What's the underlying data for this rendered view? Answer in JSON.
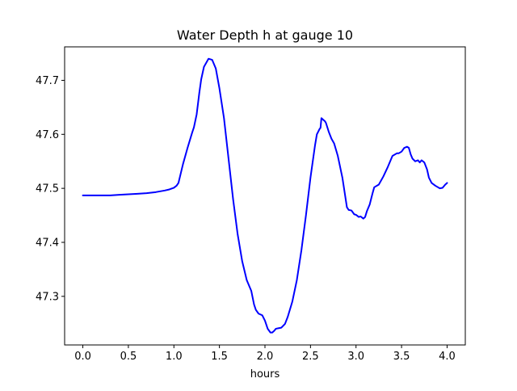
{
  "chart_data": {
    "type": "line",
    "title": "Water Depth h at gauge 10",
    "xlabel": "hours",
    "ylabel": "",
    "xlim": [
      -0.2,
      4.2
    ],
    "ylim": [
      47.21,
      47.762
    ],
    "xticks": [
      0.0,
      0.5,
      1.0,
      1.5,
      2.0,
      2.5,
      3.0,
      3.5,
      4.0
    ],
    "xtick_labels": [
      "0.0",
      "0.5",
      "1.0",
      "1.5",
      "2.0",
      "2.5",
      "3.0",
      "3.5",
      "4.0"
    ],
    "yticks": [
      47.3,
      47.4,
      47.5,
      47.6,
      47.7
    ],
    "ytick_labels": [
      "47.3",
      "47.4",
      "47.5",
      "47.6",
      "47.7"
    ],
    "grid": false,
    "series": [
      {
        "color": "#0000ff",
        "x": [
          0.0,
          0.1,
          0.2,
          0.3,
          0.4,
          0.5,
          0.6,
          0.7,
          0.8,
          0.9,
          0.95,
          1.0,
          1.03,
          1.05,
          1.1,
          1.15,
          1.2,
          1.22,
          1.25,
          1.28,
          1.3,
          1.33,
          1.35,
          1.38,
          1.42,
          1.46,
          1.5,
          1.55,
          1.6,
          1.65,
          1.7,
          1.75,
          1.8,
          1.85,
          1.88,
          1.9,
          1.93,
          1.97,
          2.0,
          2.03,
          2.06,
          2.08,
          2.1,
          2.12,
          2.15,
          2.18,
          2.22,
          2.25,
          2.3,
          2.35,
          2.4,
          2.45,
          2.5,
          2.55,
          2.57,
          2.6,
          2.61,
          2.62,
          2.64,
          2.66,
          2.67,
          2.7,
          2.73,
          2.76,
          2.8,
          2.85,
          2.9,
          2.92,
          2.95,
          2.98,
          3.0,
          3.03,
          3.05,
          3.08,
          3.1,
          3.12,
          3.15,
          3.18,
          3.2,
          3.25,
          3.3,
          3.35,
          3.4,
          3.45,
          3.47,
          3.5,
          3.53,
          3.56,
          3.58,
          3.6,
          3.62,
          3.65,
          3.68,
          3.7,
          3.72,
          3.75,
          3.78,
          3.8,
          3.83,
          3.87,
          3.9,
          3.92,
          3.95,
          3.98,
          4.0
        ],
        "y": [
          47.487,
          47.487,
          47.487,
          47.487,
          47.488,
          47.489,
          47.49,
          47.491,
          47.493,
          47.496,
          47.498,
          47.501,
          47.505,
          47.51,
          47.545,
          47.575,
          47.603,
          47.613,
          47.637,
          47.678,
          47.702,
          47.725,
          47.731,
          47.74,
          47.738,
          47.722,
          47.685,
          47.63,
          47.555,
          47.48,
          47.415,
          47.365,
          47.33,
          47.31,
          47.285,
          47.275,
          47.268,
          47.265,
          47.255,
          47.24,
          47.233,
          47.233,
          47.236,
          47.24,
          47.241,
          47.242,
          47.249,
          47.262,
          47.29,
          47.33,
          47.385,
          47.45,
          47.52,
          47.58,
          47.6,
          47.61,
          47.612,
          47.63,
          47.627,
          47.624,
          47.621,
          47.605,
          47.592,
          47.583,
          47.56,
          47.52,
          47.465,
          47.46,
          47.459,
          47.452,
          47.451,
          47.447,
          47.448,
          47.444,
          47.447,
          47.458,
          47.47,
          47.49,
          47.502,
          47.507,
          47.522,
          47.54,
          47.56,
          47.565,
          47.565,
          47.568,
          47.575,
          47.577,
          47.575,
          47.563,
          47.555,
          47.55,
          47.552,
          47.548,
          47.552,
          47.548,
          47.535,
          47.52,
          47.51,
          47.505,
          47.502,
          47.5,
          47.501,
          47.507,
          47.51
        ]
      }
    ]
  }
}
